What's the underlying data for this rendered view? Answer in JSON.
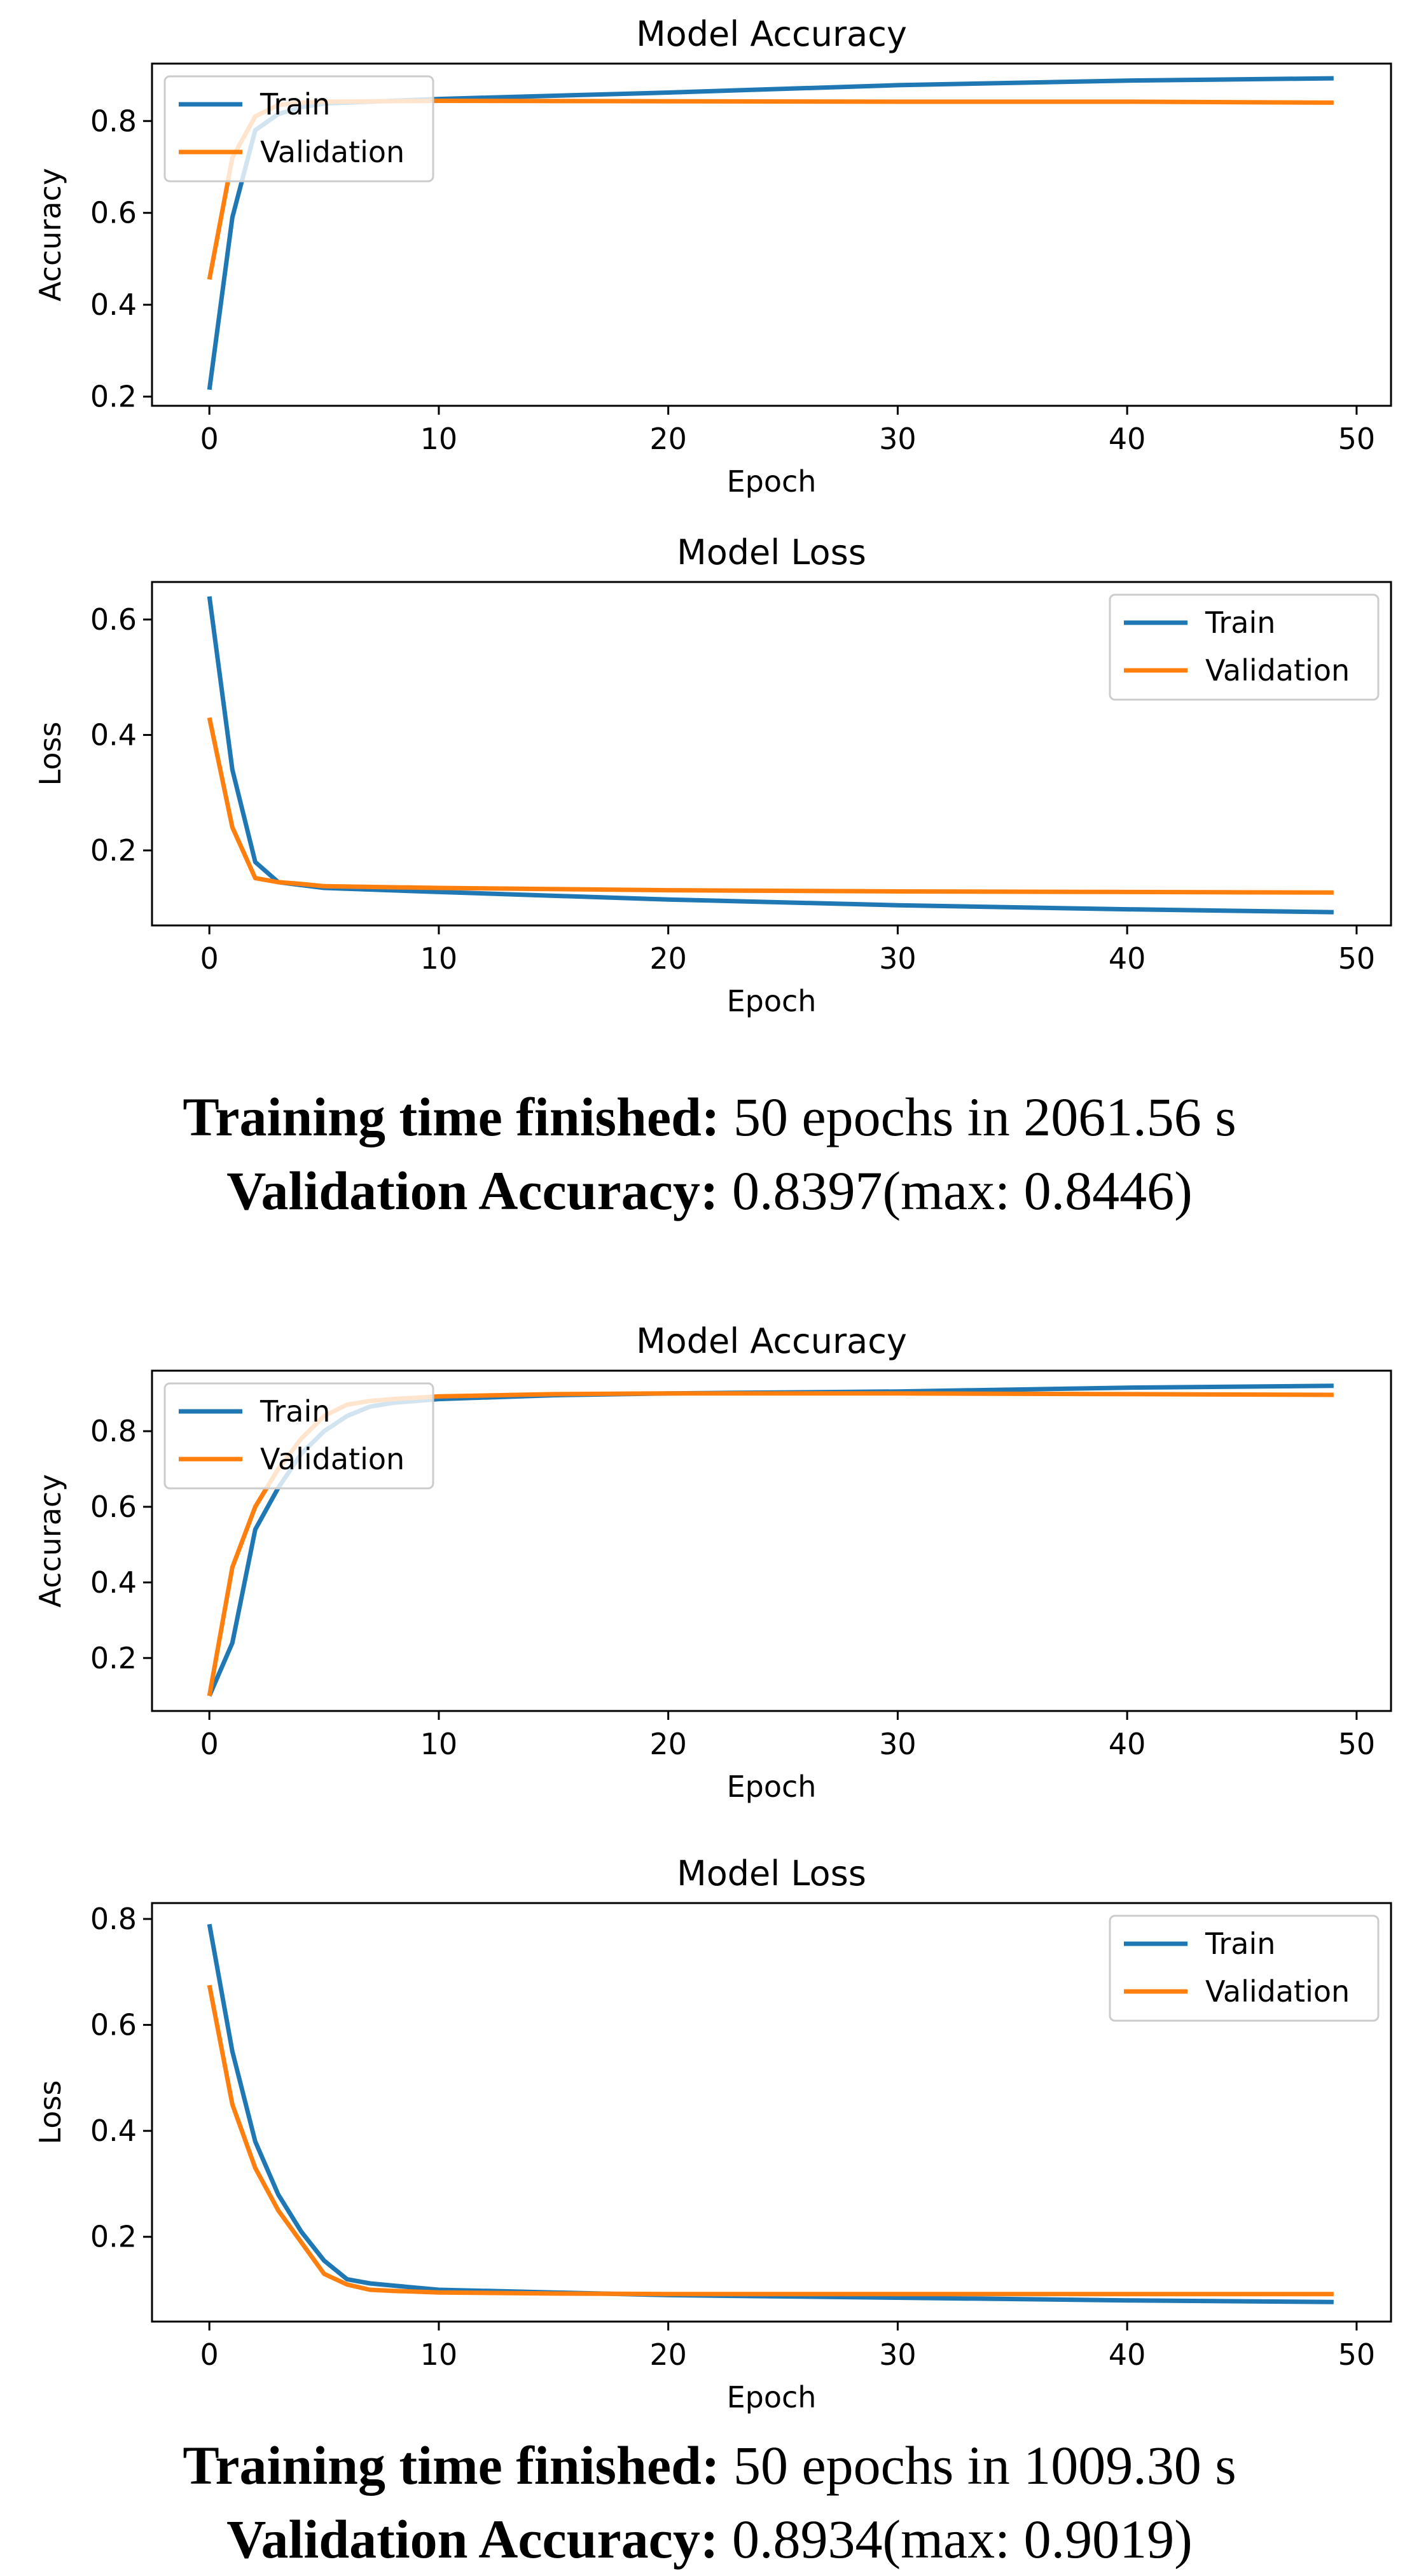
{
  "colors": {
    "train": "#1f77b4",
    "validation": "#ff7f0e"
  },
  "runs": [
    {
      "caption": {
        "time_label": "Training time finished:",
        "time_value": "50 epochs in 2061.56 s",
        "acc_label": "Validation Accuracy:",
        "acc_value": "0.8397(max: 0.8446)"
      }
    },
    {
      "caption": {
        "time_label": "Training time finished:",
        "time_value": "50 epochs in 1009.30 s",
        "acc_label": "Validation Accuracy:",
        "acc_value": "0.8934(max: 0.9019)"
      }
    }
  ],
  "chart_data": [
    {
      "type": "line",
      "title": "Model Accuracy",
      "xlabel": "Epoch",
      "ylabel": "Accuracy",
      "xlim": [
        -2.5,
        51.5
      ],
      "ylim": [
        0.18,
        0.925
      ],
      "xticks": [
        0,
        10,
        20,
        30,
        40,
        50
      ],
      "yticks": [
        0.2,
        0.4,
        0.6,
        0.8
      ],
      "legend": "upper left",
      "series": [
        {
          "name": "Train",
          "x": [
            0,
            1,
            2,
            3,
            4,
            5,
            10,
            20,
            30,
            40,
            49
          ],
          "y": [
            0.215,
            0.59,
            0.78,
            0.815,
            0.83,
            0.838,
            0.848,
            0.862,
            0.878,
            0.888,
            0.893
          ]
        },
        {
          "name": "Validation",
          "x": [
            0,
            1,
            2,
            3,
            4,
            5,
            10,
            20,
            30,
            40,
            49
          ],
          "y": [
            0.455,
            0.72,
            0.81,
            0.835,
            0.84,
            0.842,
            0.844,
            0.843,
            0.842,
            0.842,
            0.84
          ]
        }
      ]
    },
    {
      "type": "line",
      "title": "Model Loss",
      "xlabel": "Epoch",
      "ylabel": "Loss",
      "xlim": [
        -2.5,
        51.5
      ],
      "ylim": [
        0.07,
        0.665
      ],
      "xticks": [
        0,
        10,
        20,
        30,
        40,
        50
      ],
      "yticks": [
        0.2,
        0.4,
        0.6
      ],
      "legend": "upper right",
      "series": [
        {
          "name": "Train",
          "x": [
            0,
            1,
            2,
            3,
            4,
            5,
            10,
            20,
            30,
            40,
            49
          ],
          "y": [
            0.64,
            0.34,
            0.18,
            0.145,
            0.14,
            0.135,
            0.128,
            0.115,
            0.105,
            0.098,
            0.093
          ]
        },
        {
          "name": "Validation",
          "x": [
            0,
            1,
            2,
            3,
            4,
            5,
            10,
            20,
            30,
            40,
            49
          ],
          "y": [
            0.43,
            0.24,
            0.152,
            0.145,
            0.142,
            0.138,
            0.135,
            0.131,
            0.129,
            0.128,
            0.127
          ]
        }
      ]
    },
    {
      "type": "line",
      "title": "Model Accuracy",
      "xlabel": "Epoch",
      "ylabel": "Accuracy",
      "xlim": [
        -2.5,
        51.5
      ],
      "ylim": [
        0.06,
        0.96
      ],
      "xticks": [
        0,
        10,
        20,
        30,
        40,
        50
      ],
      "yticks": [
        0.2,
        0.4,
        0.6,
        0.8
      ],
      "legend": "upper left",
      "series": [
        {
          "name": "Train",
          "x": [
            0,
            1,
            2,
            3,
            4,
            5,
            6,
            7,
            8,
            10,
            15,
            20,
            30,
            40,
            49
          ],
          "y": [
            0.1,
            0.24,
            0.54,
            0.65,
            0.74,
            0.8,
            0.84,
            0.865,
            0.875,
            0.885,
            0.895,
            0.9,
            0.905,
            0.915,
            0.92
          ]
        },
        {
          "name": "Validation",
          "x": [
            0,
            1,
            2,
            3,
            4,
            5,
            6,
            7,
            8,
            10,
            15,
            20,
            30,
            40,
            49
          ],
          "y": [
            0.1,
            0.44,
            0.6,
            0.7,
            0.78,
            0.84,
            0.87,
            0.88,
            0.885,
            0.892,
            0.898,
            0.9,
            0.9,
            0.898,
            0.896
          ]
        }
      ]
    },
    {
      "type": "line",
      "title": "Model Loss",
      "xlabel": "Epoch",
      "ylabel": "Loss",
      "xlim": [
        -2.5,
        51.5
      ],
      "ylim": [
        0.04,
        0.83
      ],
      "xticks": [
        0,
        10,
        20,
        30,
        40,
        50
      ],
      "yticks": [
        0.2,
        0.4,
        0.6,
        0.8
      ],
      "legend": "upper right",
      "series": [
        {
          "name": "Train",
          "x": [
            0,
            1,
            2,
            3,
            4,
            5,
            6,
            7,
            8,
            10,
            15,
            20,
            30,
            40,
            49
          ],
          "y": [
            0.79,
            0.55,
            0.38,
            0.28,
            0.21,
            0.155,
            0.12,
            0.112,
            0.108,
            0.1,
            0.095,
            0.09,
            0.085,
            0.08,
            0.077
          ]
        },
        {
          "name": "Validation",
          "x": [
            0,
            1,
            2,
            3,
            4,
            5,
            6,
            7,
            8,
            10,
            15,
            20,
            30,
            40,
            49
          ],
          "y": [
            0.675,
            0.45,
            0.33,
            0.25,
            0.19,
            0.13,
            0.11,
            0.1,
            0.098,
            0.095,
            0.093,
            0.092,
            0.092,
            0.092,
            0.092
          ]
        }
      ]
    }
  ]
}
